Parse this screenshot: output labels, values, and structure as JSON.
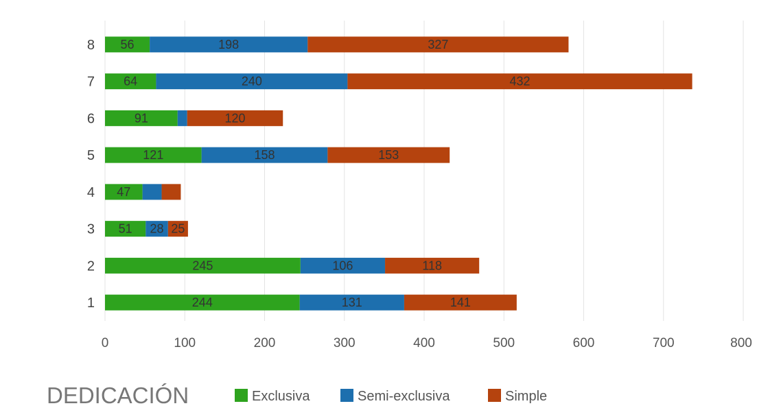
{
  "chart_data": {
    "type": "bar",
    "orientation": "horizontal",
    "stacked": true,
    "categories": [
      "1",
      "2",
      "3",
      "4",
      "5",
      "6",
      "7",
      "8"
    ],
    "series": [
      {
        "name": "Exclusiva",
        "color": "#2ea31e",
        "values": [
          244,
          245,
          51,
          47,
          121,
          91,
          64,
          56
        ]
      },
      {
        "name": "Semi-exclusiva",
        "color": "#1d6fae",
        "values": [
          131,
          106,
          28,
          24,
          158,
          12,
          240,
          198
        ]
      },
      {
        "name": "Simple",
        "color": "#b5430e",
        "values": [
          141,
          118,
          25,
          24,
          153,
          120,
          432,
          327
        ]
      }
    ],
    "data_labels": [
      [
        "244",
        "131",
        "141"
      ],
      [
        "245",
        "106",
        "118"
      ],
      [
        "51",
        "28",
        "25"
      ],
      [
        "47",
        "",
        ""
      ],
      [
        "121",
        "158",
        "153"
      ],
      [
        "91",
        "",
        "120"
      ],
      [
        "64",
        "240",
        "432"
      ],
      [
        "56",
        "198",
        "327"
      ]
    ],
    "xlim": [
      0,
      800
    ],
    "xticks": [
      "0",
      "100",
      "200",
      "300",
      "400",
      "500",
      "600",
      "700",
      "800"
    ],
    "grid": "vertical",
    "legend": {
      "title": "DEDICACIÓN",
      "placement": "bottom-left"
    }
  }
}
